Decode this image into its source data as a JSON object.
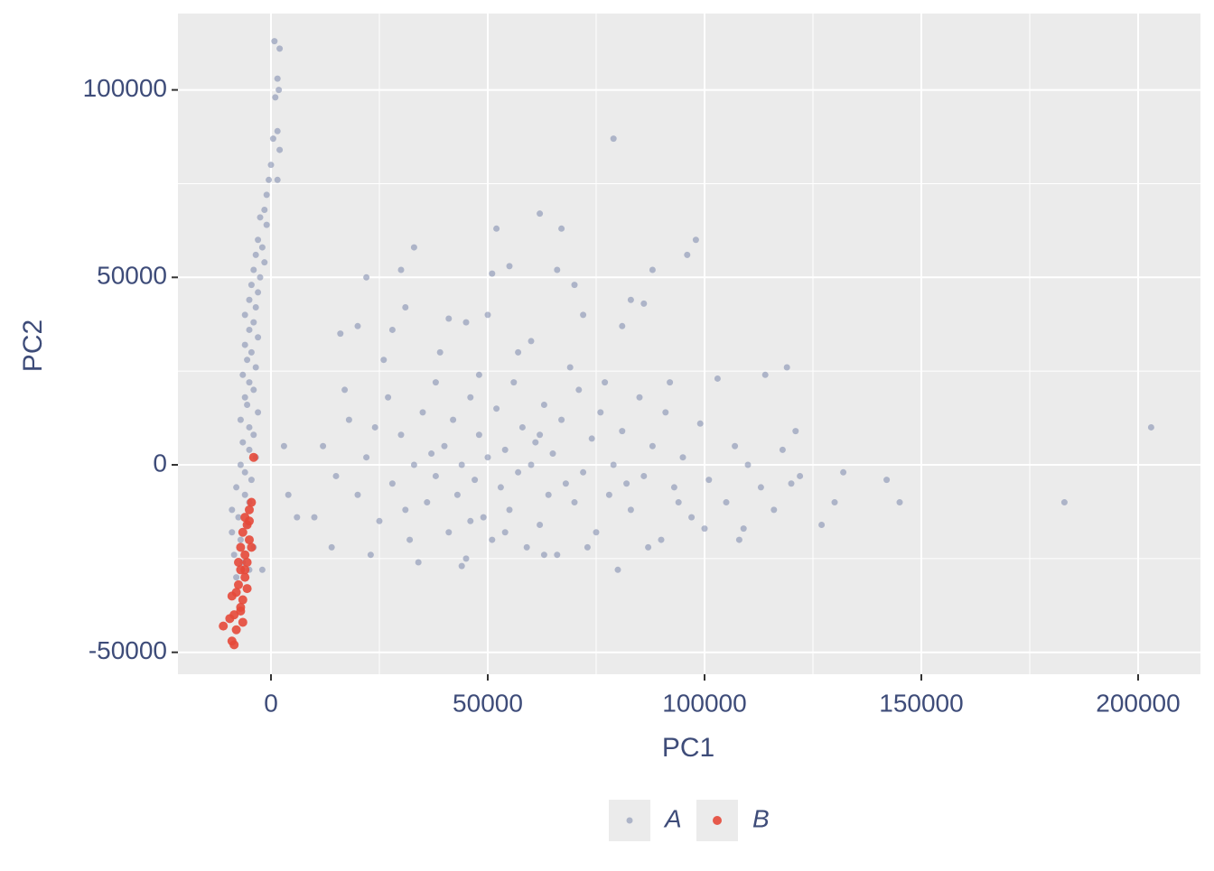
{
  "chart_data": {
    "type": "scatter",
    "x_label": "PC1",
    "y_label": "PC2",
    "xlim": [
      -21458,
      214375
    ],
    "ylim": [
      -55850,
      120366
    ],
    "xticks": [
      0,
      50000,
      100000,
      150000,
      200000
    ],
    "yticks": [
      -50000,
      0,
      50000,
      100000
    ],
    "x_minor_grid": [
      25000,
      75000,
      125000,
      175000
    ],
    "y_minor_grid": [
      -25000,
      25000,
      75000
    ],
    "grid": true,
    "legend": "bottom",
    "series": [
      {
        "name": "A",
        "color": "#8390b0",
        "x": [
          800,
          2000,
          1500,
          1800,
          1000,
          1500,
          500,
          2000,
          0,
          -500,
          1500,
          -1000,
          -1500,
          -2500,
          -1000,
          -3000,
          -2000,
          -3500,
          -1500,
          -4000,
          -2500,
          -4500,
          -3000,
          -5000,
          -3500,
          -6000,
          -4000,
          -5000,
          -3000,
          -6000,
          -4500,
          -5500,
          -3500,
          -6500,
          -5000,
          -4000,
          -6000,
          -5500,
          -3000,
          -7000,
          -5000,
          -4000,
          -6500,
          -5000,
          -3500,
          -7000,
          -6000,
          -4500,
          -8000,
          -6000,
          -5000,
          -9000,
          -7500,
          -5500,
          -9000,
          -7000,
          -4000,
          -8500,
          -6500,
          -5000,
          -8000,
          -2000,
          4000,
          6000,
          3000,
          79000,
          62000,
          67000,
          52000,
          98000,
          96000,
          55000,
          22000,
          30000,
          51000,
          66000,
          88000,
          33000,
          70000,
          83000,
          86000,
          31000,
          50000,
          72000,
          28000,
          41000,
          20000,
          16000,
          45000,
          81000,
          60000,
          203000,
          183000,
          145000,
          142000,
          132000,
          127000,
          130000,
          122000,
          121000,
          119000,
          114000,
          12000,
          15000,
          18000,
          20000,
          22000,
          25000,
          27000,
          28000,
          30000,
          32000,
          33000,
          35000,
          36000,
          38000,
          38000,
          40000,
          41000,
          42000,
          43000,
          44000,
          45000,
          46000,
          47000,
          48000,
          49000,
          50000,
          51000,
          52000,
          53000,
          54000,
          55000,
          56000,
          57000,
          58000,
          59000,
          60000,
          61000,
          62000,
          63000,
          64000,
          65000,
          66000,
          67000,
          68000,
          70000,
          71000,
          72000,
          74000,
          75000,
          76000,
          78000,
          79000,
          80000,
          81000,
          83000,
          85000,
          86000,
          88000,
          90000,
          91000,
          93000,
          95000,
          97000,
          99000,
          101000,
          103000,
          105000,
          107000,
          109000,
          110000,
          113000,
          116000,
          118000,
          120000,
          10000,
          14000,
          17000,
          23000,
          26000,
          34000,
          39000,
          44000,
          48000,
          57000,
          63000,
          69000,
          73000,
          77000,
          87000,
          92000,
          100000,
          108000,
          24000,
          31000,
          37000,
          46000,
          54000,
          62000,
          82000,
          94000
        ],
        "values": [
          113000,
          111000,
          103000,
          100000,
          98000,
          89000,
          87000,
          84000,
          80000,
          76000,
          76000,
          72000,
          68000,
          66000,
          64000,
          60000,
          58000,
          56000,
          54000,
          52000,
          50000,
          48000,
          46000,
          44000,
          42000,
          40000,
          38000,
          36000,
          34000,
          32000,
          30000,
          28000,
          26000,
          24000,
          22000,
          20000,
          18000,
          16000,
          14000,
          12000,
          10000,
          8000,
          6000,
          4000,
          2000,
          0,
          -2000,
          -4000,
          -6000,
          -8000,
          -10000,
          -12000,
          -14000,
          -16000,
          -18000,
          -20000,
          -22000,
          -24000,
          -26000,
          -28000,
          -30000,
          -28000,
          -8000,
          -14000,
          5000,
          87000,
          67000,
          63000,
          63000,
          60000,
          56000,
          53000,
          50000,
          52000,
          51000,
          52000,
          52000,
          58000,
          48000,
          44000,
          43000,
          42000,
          40000,
          40000,
          36000,
          39000,
          37000,
          35000,
          38000,
          37000,
          33000,
          10000,
          -10000,
          -10000,
          -4000,
          -2000,
          -16000,
          -10000,
          -3000,
          9000,
          26000,
          24000,
          5000,
          -3000,
          12000,
          -8000,
          2000,
          -15000,
          18000,
          -5000,
          8000,
          -20000,
          0,
          14000,
          -10000,
          22000,
          -3000,
          5000,
          -18000,
          12000,
          -8000,
          0,
          -25000,
          18000,
          -4000,
          8000,
          -14000,
          2000,
          -20000,
          15000,
          -6000,
          4000,
          -12000,
          22000,
          -2000,
          10000,
          -22000,
          0,
          6000,
          -16000,
          16000,
          -8000,
          3000,
          -24000,
          12000,
          -5000,
          -10000,
          20000,
          -2000,
          7000,
          -18000,
          14000,
          -8000,
          0,
          -28000,
          9000,
          -12000,
          18000,
          -3000,
          5000,
          -20000,
          14000,
          -6000,
          2000,
          -14000,
          11000,
          -4000,
          23000,
          -10000,
          5000,
          -17000,
          0,
          -6000,
          -12000,
          4000,
          -5000,
          -14000,
          -22000,
          20000,
          -24000,
          28000,
          -26000,
          30000,
          -27000,
          24000,
          30000,
          -24000,
          26000,
          -22000,
          22000,
          -22000,
          22000,
          -17000,
          -20000,
          10000,
          -12000,
          3000,
          -15000,
          -18000,
          8000,
          -5000,
          -10000
        ]
      },
      {
        "name": "B",
        "color": "#e5493a",
        "x": [
          -4000,
          -4500,
          -5000,
          -6000,
          -5500,
          -6500,
          -5000,
          -7000,
          -6000,
          -5500,
          -7000,
          -6000,
          -7500,
          -5500,
          -8000,
          -6500,
          -9000,
          -7000,
          -8500,
          -6500,
          -9500,
          -11000,
          -8000,
          -9000,
          -8500,
          -7000,
          -6000,
          -4500,
          -5000,
          -7500
        ],
        "values": [
          2000,
          -10000,
          -12000,
          -14000,
          -16000,
          -18000,
          -20000,
          -22000,
          -24000,
          -26000,
          -28000,
          -30000,
          -32000,
          -33000,
          -34000,
          -36000,
          -35000,
          -38000,
          -40000,
          -42000,
          -41000,
          -43000,
          -44000,
          -47000,
          -48000,
          -39000,
          -28000,
          -22000,
          -15000,
          -26000
        ]
      }
    ]
  }
}
